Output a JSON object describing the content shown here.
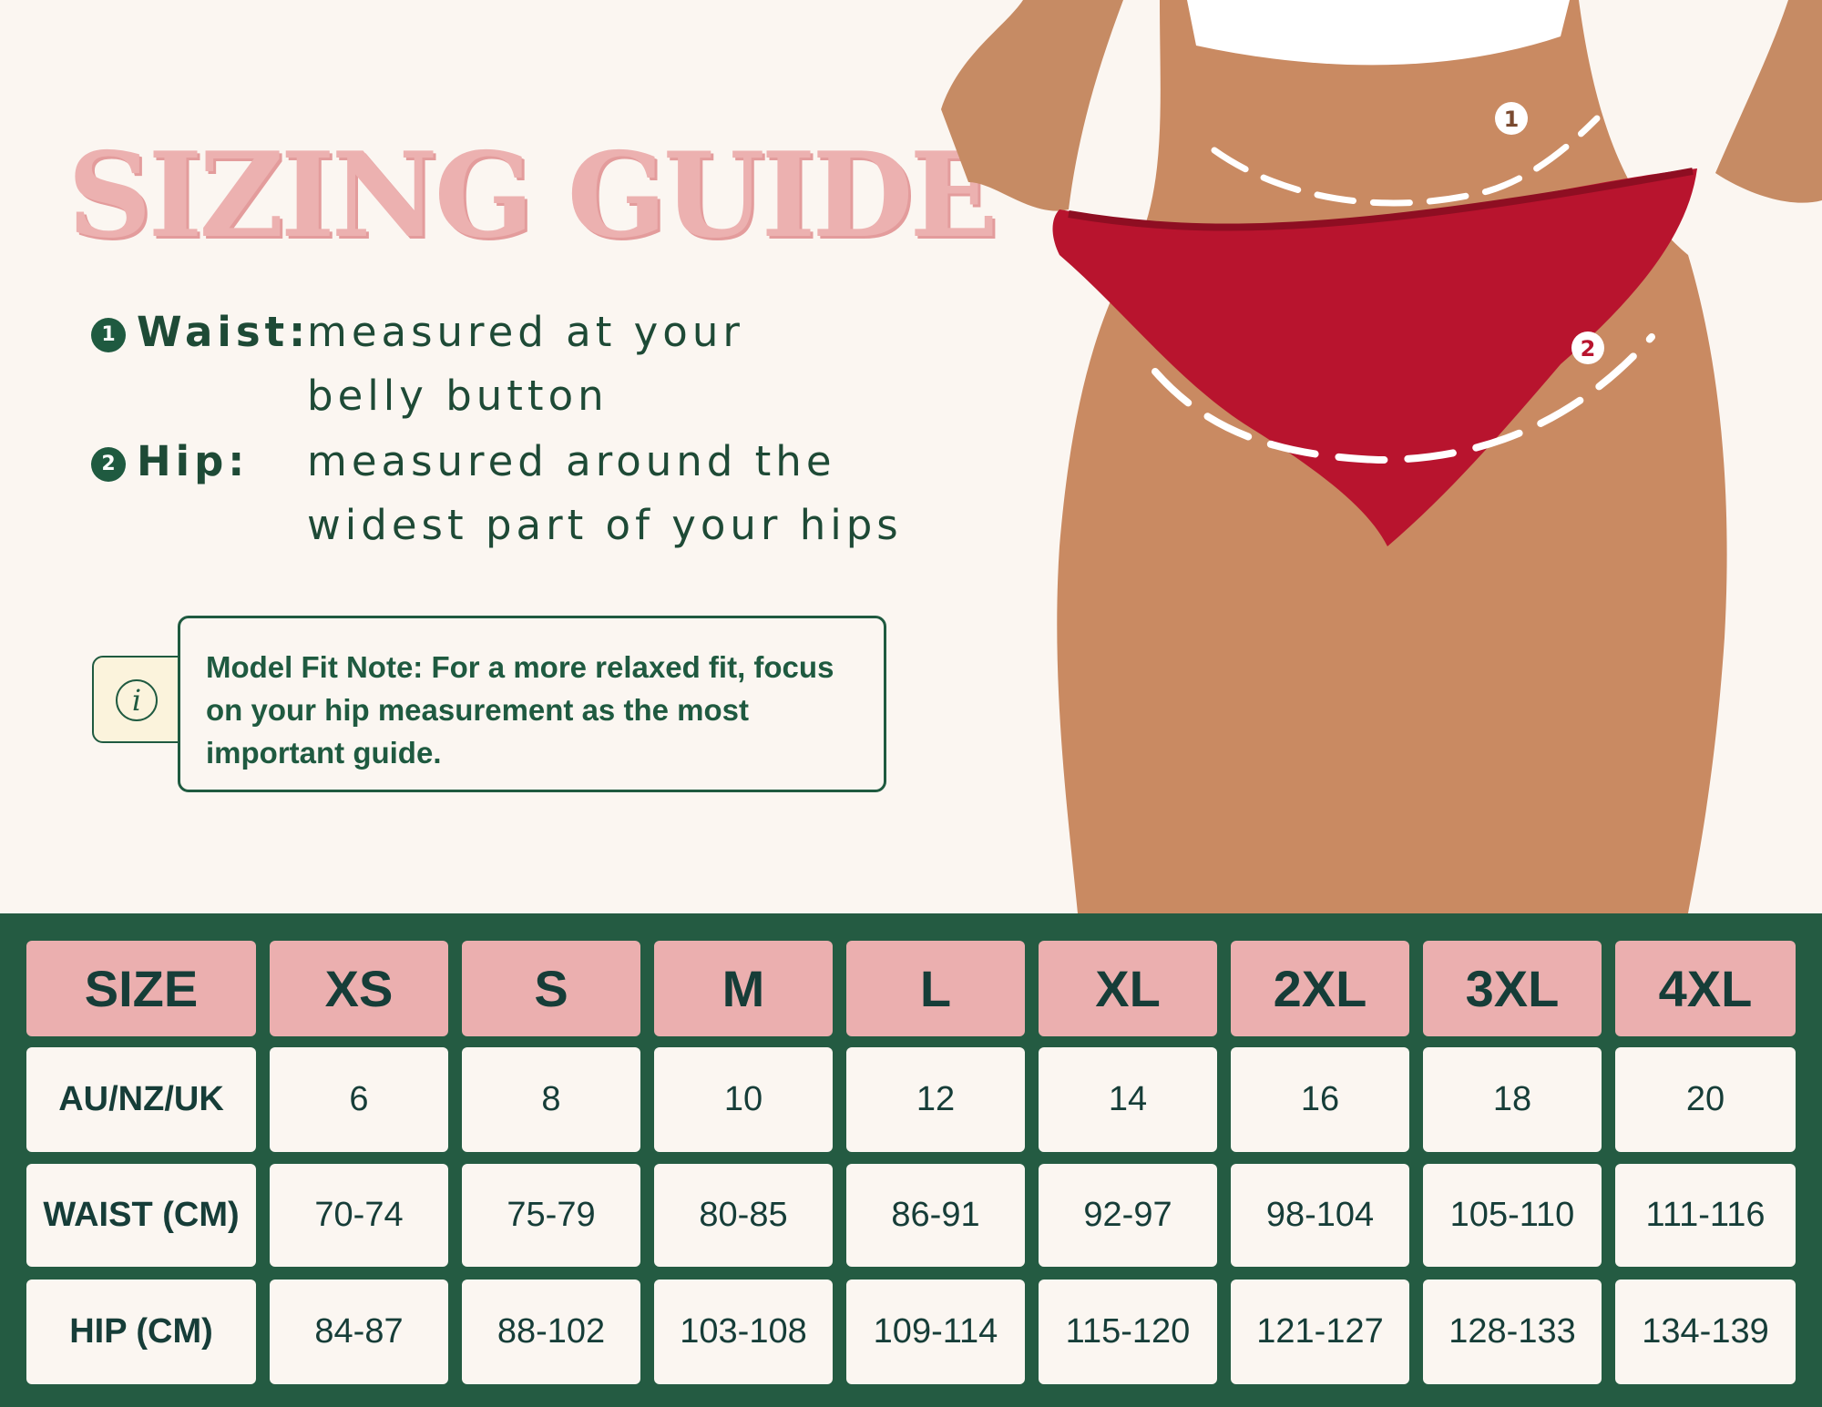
{
  "title": "SIZING GUIDE",
  "measurements": [
    {
      "number": "1",
      "label": "Waist:",
      "lines": [
        "measured at your",
        "belly button"
      ]
    },
    {
      "number": "2",
      "label": "Hip:",
      "lines": [
        "measured around the",
        "widest part of your hips"
      ]
    }
  ],
  "note": {
    "icon": "info-icon",
    "text": "Model Fit Note: For a more relaxed fit, focus on your hip measurement as the most important guide."
  },
  "photo_markers": [
    "1",
    "2"
  ],
  "table": {
    "headers": [
      "SIZE",
      "XS",
      "S",
      "M",
      "L",
      "XL",
      "2XL",
      "3XL",
      "4XL"
    ],
    "rows": [
      {
        "label": "AU/NZ/UK",
        "values": [
          "6",
          "8",
          "10",
          "12",
          "14",
          "16",
          "18",
          "20"
        ]
      },
      {
        "label": "WAIST (CM)",
        "values": [
          "70-74",
          "75-79",
          "80-85",
          "86-91",
          "92-97",
          "98-104",
          "105-110",
          "111-116"
        ]
      },
      {
        "label": "HIP (CM)",
        "values": [
          "84-87",
          "88-102",
          "103-108",
          "109-114",
          "115-120",
          "121-127",
          "128-133",
          "134-139"
        ]
      }
    ]
  },
  "colors": {
    "pink": "#ebafaf",
    "green": "#245b42",
    "cream": "#fbf6f1",
    "red": "#b8142e"
  }
}
